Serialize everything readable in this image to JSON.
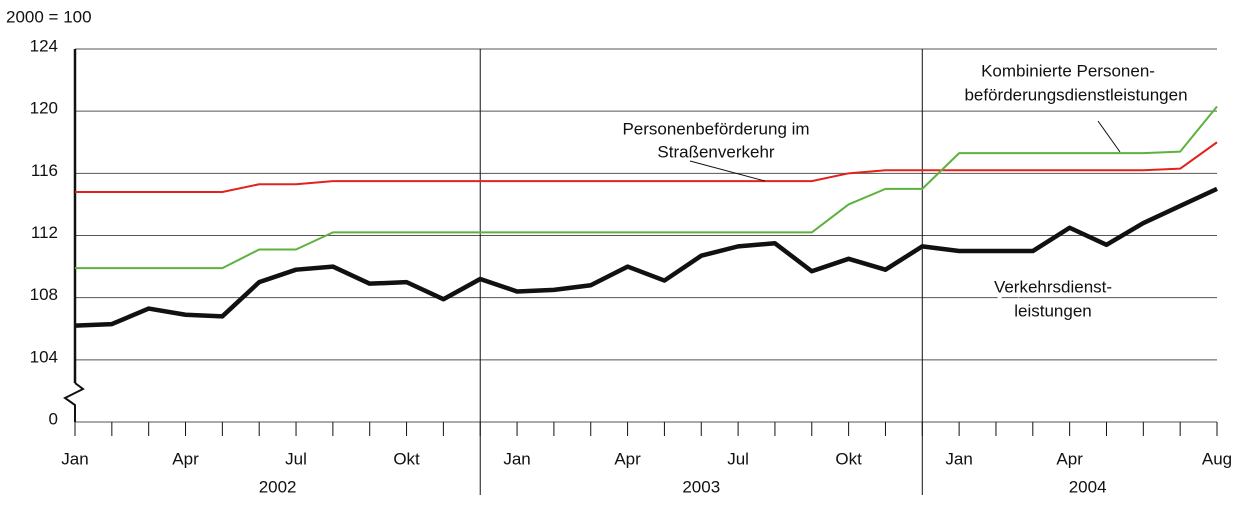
{
  "chart_data": {
    "type": "line",
    "unit_label": "2000 = 100",
    "categories": [
      "Jan",
      null,
      null,
      "Apr",
      null,
      null,
      "Jul",
      null,
      null,
      "Okt",
      null,
      null,
      "Jan",
      null,
      null,
      "Apr",
      null,
      null,
      "Jul",
      null,
      null,
      "Okt",
      null,
      null,
      "Jan",
      null,
      null,
      "Apr",
      null,
      null,
      null,
      "Aug"
    ],
    "year_labels": [
      "2002",
      "2003",
      "2004"
    ],
    "series": [
      {
        "name": [
          "Personenbeförderung im",
          "Straßenverkehr"
        ],
        "color": "#e0231c",
        "values": [
          114.8,
          114.8,
          114.8,
          114.8,
          114.8,
          115.3,
          115.3,
          115.5,
          115.5,
          115.5,
          115.5,
          115.5,
          115.5,
          115.5,
          115.5,
          115.5,
          115.5,
          115.5,
          115.5,
          115.5,
          115.5,
          116.0,
          116.2,
          116.2,
          116.2,
          116.2,
          116.2,
          116.2,
          116.2,
          116.2,
          116.3,
          118.0
        ]
      },
      {
        "name": [
          "Kombinierte Personen-",
          "beförderungsdienstleistungen"
        ],
        "color": "#5db13e",
        "values": [
          109.9,
          109.9,
          109.9,
          109.9,
          109.9,
          111.1,
          111.1,
          112.2,
          112.2,
          112.2,
          112.2,
          112.2,
          112.2,
          112.2,
          112.2,
          112.2,
          112.2,
          112.2,
          112.2,
          112.2,
          112.2,
          114.0,
          115.0,
          115.0,
          117.3,
          117.3,
          117.3,
          117.3,
          117.3,
          117.3,
          117.4,
          120.3
        ]
      },
      {
        "name": [
          "Verkehrsdienst-",
          "leistungen"
        ],
        "color": "#111111",
        "values": [
          106.2,
          106.3,
          107.3,
          106.9,
          106.8,
          109.0,
          109.8,
          110.0,
          108.9,
          109.0,
          107.9,
          109.2,
          108.4,
          108.5,
          108.8,
          110.0,
          109.1,
          110.7,
          111.3,
          111.5,
          109.7,
          110.5,
          109.8,
          111.3,
          111.0,
          111.0,
          111.0,
          112.5,
          111.4,
          112.8,
          113.9,
          115.0
        ]
      }
    ],
    "ylim": [
      0,
      124
    ],
    "axis_break": [
      0,
      100
    ],
    "yticks": [
      0,
      104,
      108,
      112,
      116,
      120,
      124
    ],
    "grid": true
  }
}
